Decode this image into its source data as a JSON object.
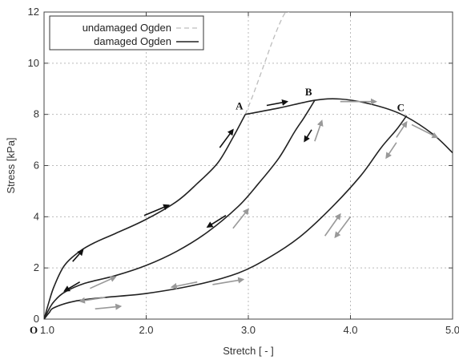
{
  "chart_data": {
    "type": "line",
    "xlabel": "Stretch [ - ]",
    "ylabel": "Stress [kPa]",
    "xlim": [
      1.0,
      5.0
    ],
    "ylim": [
      0,
      12
    ],
    "xticks": [
      {
        "v": 1.0,
        "label": "1.0"
      },
      {
        "v": 2.0,
        "label": "2.0"
      },
      {
        "v": 3.0,
        "label": "3.0"
      },
      {
        "v": 4.0,
        "label": "4.0"
      },
      {
        "v": 5.0,
        "label": "5.0"
      }
    ],
    "yticks": [
      {
        "v": 0,
        "label": "0"
      },
      {
        "v": 2,
        "label": "2"
      },
      {
        "v": 4,
        "label": "4"
      },
      {
        "v": 6,
        "label": "6"
      },
      {
        "v": 8,
        "label": "8"
      },
      {
        "v": 10,
        "label": "10"
      },
      {
        "v": 12,
        "label": "12"
      }
    ],
    "grid": true,
    "legend_position": "top-left",
    "origin_label": "O",
    "series": [
      {
        "name": "undamaged Ogden",
        "style": "dashed",
        "color": "#bdbdbd",
        "x": [
          2.97,
          3.05,
          3.15,
          3.25,
          3.35,
          3.4
        ],
        "y": [
          8.0,
          8.8,
          9.9,
          11.0,
          11.9,
          12.0
        ]
      },
      {
        "name": "damaged Ogden",
        "style": "solid",
        "color": "#222222",
        "segments": [
          {
            "x": [
              1.0,
              1.05,
              1.1,
              1.2,
              1.35,
              1.5,
              1.7,
              2.0,
              2.3,
              2.5,
              2.7,
              2.85,
              2.97
            ],
            "y": [
              0,
              0.7,
              1.3,
              2.1,
              2.65,
              3.0,
              3.35,
              3.9,
              4.6,
              5.3,
              6.1,
              7.1,
              8.0
            ]
          },
          {
            "x": [
              2.97,
              3.3,
              3.65,
              3.9,
              4.2,
              4.5,
              4.8,
              5.0
            ],
            "y": [
              8.0,
              8.25,
              8.55,
              8.6,
              8.4,
              8.0,
              7.25,
              6.5
            ]
          },
          {
            "x": [
              1.0,
              1.05,
              1.1,
              1.2,
              1.4,
              1.7,
              2.0,
              2.3,
              2.6,
              2.9,
              3.1,
              3.3,
              3.45,
              3.55,
              3.65
            ],
            "y": [
              0,
              0.4,
              0.7,
              1.05,
              1.4,
              1.7,
              2.1,
              2.65,
              3.4,
              4.4,
              5.3,
              6.3,
              7.3,
              7.9,
              8.55
            ]
          },
          {
            "x": [
              1.0,
              1.05,
              1.1,
              1.3,
              1.6,
              2.0,
              2.5,
              2.9,
              3.2,
              3.5,
              3.8,
              4.1,
              4.3,
              4.45,
              4.55
            ],
            "y": [
              0,
              0.25,
              0.45,
              0.7,
              0.85,
              1.0,
              1.35,
              1.8,
              2.4,
              3.2,
              4.3,
              5.6,
              6.7,
              7.4,
              7.95
            ]
          }
        ]
      }
    ],
    "points": [
      {
        "label": "A",
        "x": 2.97,
        "y": 8.0
      },
      {
        "label": "B",
        "x": 3.65,
        "y": 8.55
      },
      {
        "label": "C",
        "x": 4.55,
        "y": 7.95
      }
    ],
    "arrows": [
      {
        "x1": 1.28,
        "y1": 2.25,
        "x2": 1.38,
        "y2": 2.7,
        "color": "#111111"
      },
      {
        "x1": 1.98,
        "y1": 4.05,
        "x2": 2.22,
        "y2": 4.45,
        "color": "#111111"
      },
      {
        "x1": 2.72,
        "y1": 6.7,
        "x2": 2.85,
        "y2": 7.4,
        "color": "#111111"
      },
      {
        "x1": 3.18,
        "y1": 8.35,
        "x2": 3.38,
        "y2": 8.5,
        "color": "#111111"
      },
      {
        "x1": 3.62,
        "y1": 7.4,
        "x2": 3.55,
        "y2": 6.95,
        "color": "#111111"
      },
      {
        "x1": 2.78,
        "y1": 4.05,
        "x2": 2.6,
        "y2": 3.6,
        "color": "#111111"
      },
      {
        "x1": 1.35,
        "y1": 1.45,
        "x2": 1.2,
        "y2": 1.1,
        "color": "#111111"
      },
      {
        "x1": 3.65,
        "y1": 6.95,
        "x2": 3.72,
        "y2": 7.75,
        "color": "#999999"
      },
      {
        "x1": 2.85,
        "y1": 3.55,
        "x2": 3.0,
        "y2": 4.3,
        "color": "#999999"
      },
      {
        "x1": 1.45,
        "y1": 1.2,
        "x2": 1.7,
        "y2": 1.65,
        "color": "#999999"
      },
      {
        "x1": 3.9,
        "y1": 8.5,
        "x2": 4.25,
        "y2": 8.5,
        "color": "#999999"
      },
      {
        "x1": 4.6,
        "y1": 7.6,
        "x2": 4.85,
        "y2": 7.1,
        "color": "#999999"
      },
      {
        "x1": 4.45,
        "y1": 6.9,
        "x2": 4.35,
        "y2": 6.3,
        "color": "#999999"
      },
      {
        "x1": 4.0,
        "y1": 4.0,
        "x2": 3.85,
        "y2": 3.2,
        "color": "#999999"
      },
      {
        "x1": 4.45,
        "y1": 7.1,
        "x2": 4.55,
        "y2": 7.7,
        "color": "#999999"
      },
      {
        "x1": 3.75,
        "y1": 3.25,
        "x2": 3.9,
        "y2": 4.1,
        "color": "#999999"
      },
      {
        "x1": 2.5,
        "y1": 1.45,
        "x2": 2.25,
        "y2": 1.25,
        "color": "#999999"
      },
      {
        "x1": 2.65,
        "y1": 1.35,
        "x2": 2.95,
        "y2": 1.55,
        "color": "#999999"
      },
      {
        "x1": 1.6,
        "y1": 0.85,
        "x2": 1.35,
        "y2": 0.7,
        "color": "#999999"
      },
      {
        "x1": 1.5,
        "y1": 0.4,
        "x2": 1.75,
        "y2": 0.5,
        "color": "#999999"
      }
    ]
  }
}
